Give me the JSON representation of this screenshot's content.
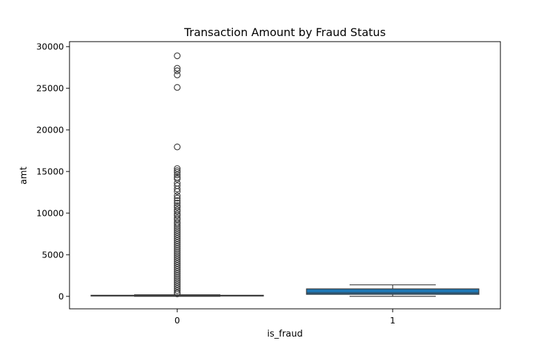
{
  "chart_data": {
    "type": "boxplot",
    "title": "Transaction Amount by Fraud Status",
    "xlabel": "is_fraud",
    "ylabel": "amt",
    "categories": [
      "0",
      "1"
    ],
    "ylim": [
      -1500,
      30600
    ],
    "yticks": [
      0,
      5000,
      10000,
      15000,
      20000,
      25000,
      30000
    ],
    "grid": false,
    "box_color": "#1f77b4",
    "boxes": [
      {
        "category": "0",
        "whisker_low": 1,
        "q1": 9,
        "median": 47,
        "q3": 83,
        "whisker_high": 195,
        "outliers": [
          28900,
          27400,
          27100,
          26600,
          25100,
          17950,
          15350,
          15100,
          14900,
          14600,
          14300,
          14100,
          13600,
          13300,
          12900,
          12600,
          12100,
          11800,
          11500,
          11200,
          10900,
          10700,
          10400,
          10200,
          9900,
          9700,
          9400,
          9200,
          8900,
          8700,
          8450,
          8200,
          7950,
          7700,
          7450,
          7200,
          6950,
          6700,
          6450,
          6200,
          5950,
          5700,
          5450,
          5200,
          4950,
          4700,
          4450,
          4200,
          3950,
          3700,
          3450,
          3200,
          2950,
          2700,
          2450,
          2200,
          1950,
          1700,
          1450,
          1200,
          950,
          700,
          450,
          300
        ]
      },
      {
        "category": "1",
        "whisker_low": 2,
        "q1": 240,
        "median": 400,
        "q3": 900,
        "whisker_high": 1380,
        "outliers": []
      }
    ]
  }
}
